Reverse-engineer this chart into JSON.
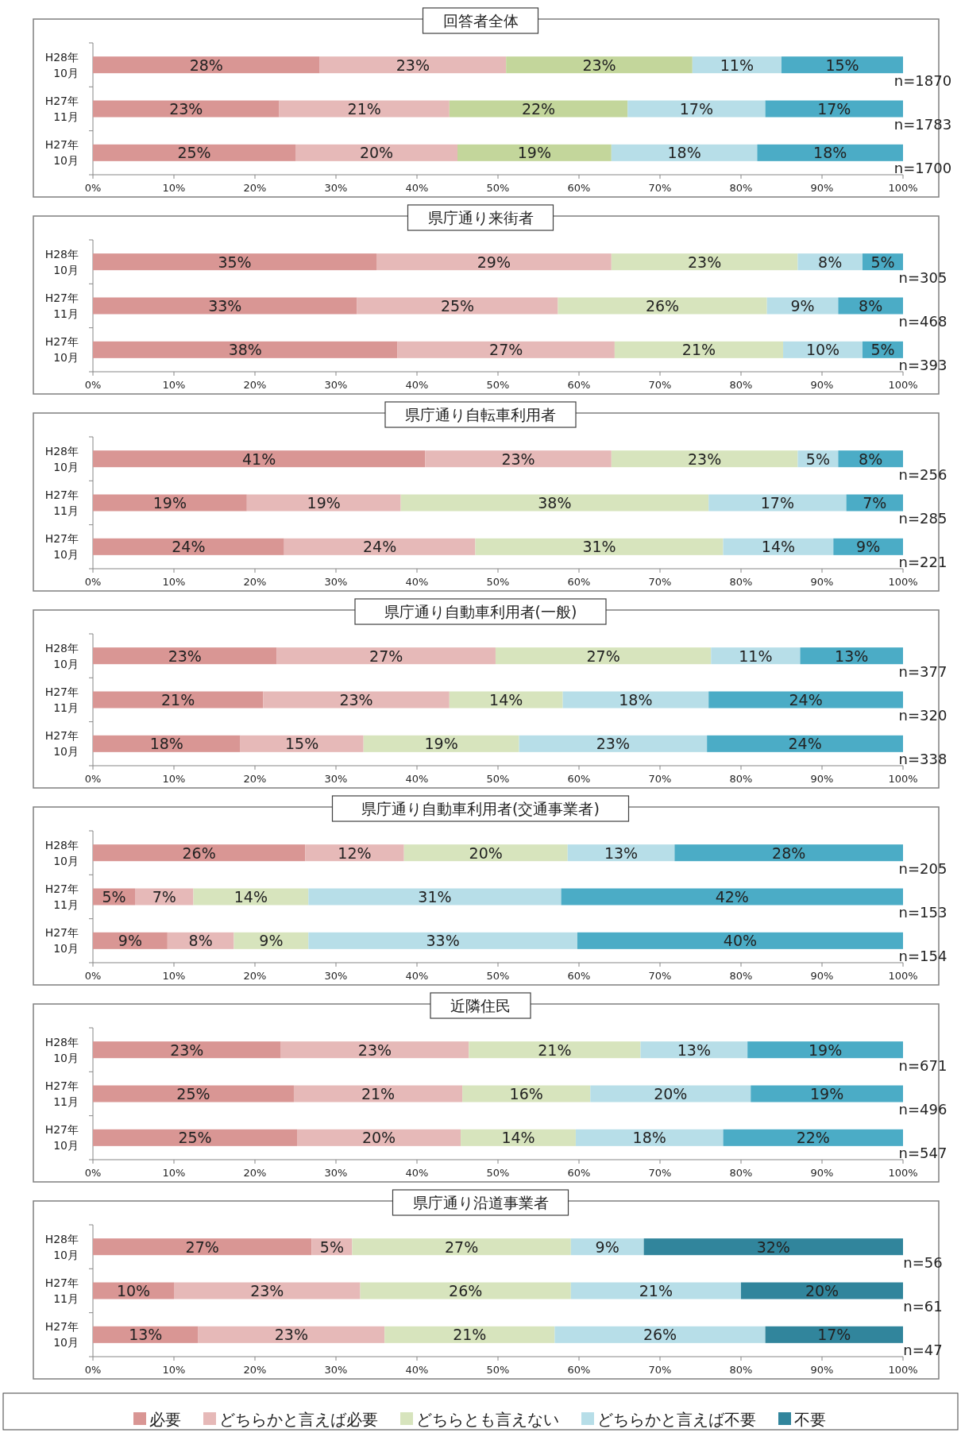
{
  "chart_data": [
    {
      "type": "bar",
      "orientation": "horizontal",
      "stacked": true,
      "title": "回答者全体",
      "categories": [
        "H28年\n10月",
        "H27年\n11月",
        "H27年\n10月"
      ],
      "xlim": [
        0,
        100
      ],
      "xticks": [
        {
          "value": 0,
          "label": "0%"
        },
        {
          "value": 10,
          "label": "10%"
        },
        {
          "value": 20,
          "label": "20%"
        },
        {
          "value": 30,
          "label": "30%"
        },
        {
          "value": 40,
          "label": "40%"
        },
        {
          "value": 50,
          "label": "50%"
        },
        {
          "value": 60,
          "label": "60%"
        },
        {
          "value": 70,
          "label": "70%"
        },
        {
          "value": 80,
          "label": "80%"
        },
        {
          "value": 90,
          "label": "90%"
        },
        {
          "value": 100,
          "label": "100%"
        }
      ],
      "legend": false,
      "series": [
        {
          "color": "#d99694",
          "values": [
            28,
            23,
            25
          ],
          "value_labels": [
            "28%",
            "23%",
            "25%"
          ]
        },
        {
          "color": "#e6b9b8",
          "values": [
            23,
            21,
            20
          ],
          "value_labels": [
            "23%",
            "21%",
            "20%"
          ]
        },
        {
          "color": "#c3d69b",
          "values": [
            23,
            22,
            19
          ],
          "value_labels": [
            "23%",
            "22%",
            "19%"
          ]
        },
        {
          "color": "#b7dee8",
          "values": [
            11,
            17,
            18
          ],
          "value_labels": [
            "11%",
            "17%",
            "18%"
          ]
        },
        {
          "color": "#4bacc6",
          "values": [
            15,
            17,
            18
          ],
          "value_labels": [
            "15%",
            "17%",
            "18%"
          ]
        }
      ],
      "annotations": [
        "n=1870",
        "n=1783",
        "n=1700"
      ]
    },
    {
      "type": "bar",
      "orientation": "horizontal",
      "stacked": true,
      "title": "県庁通り来街者",
      "categories": [
        "H28年\n10月",
        "H27年\n11月",
        "H27年\n10月"
      ],
      "xlim": [
        0,
        100
      ],
      "xticks": [
        {
          "value": 0,
          "label": "0%"
        },
        {
          "value": 10,
          "label": "10%"
        },
        {
          "value": 20,
          "label": "20%"
        },
        {
          "value": 30,
          "label": "30%"
        },
        {
          "value": 40,
          "label": "40%"
        },
        {
          "value": 50,
          "label": "50%"
        },
        {
          "value": 60,
          "label": "60%"
        },
        {
          "value": 70,
          "label": "70%"
        },
        {
          "value": 80,
          "label": "80%"
        },
        {
          "value": 90,
          "label": "90%"
        },
        {
          "value": 100,
          "label": "100%"
        }
      ],
      "legend": false,
      "series": [
        {
          "color": "#d99694",
          "values": [
            35,
            32.6,
            37.6
          ],
          "value_labels": [
            "35%",
            "33%",
            "38%"
          ]
        },
        {
          "color": "#e6b9b8",
          "values": [
            29,
            24.8,
            26.8
          ],
          "value_labels": [
            "29%",
            "25%",
            "27%"
          ]
        },
        {
          "color": "#d7e4bd",
          "values": [
            23,
            25.8,
            20.8
          ],
          "value_labels": [
            "23%",
            "26%",
            "21%"
          ]
        },
        {
          "color": "#b7dee8",
          "values": [
            8,
            8.8,
            9.8
          ],
          "value_labels": [
            "8%",
            "9%",
            "10%"
          ]
        },
        {
          "color": "#4bacc6",
          "values": [
            5,
            8,
            5
          ],
          "value_labels": [
            "5%",
            "8%",
            "5%"
          ]
        }
      ],
      "annotations": [
        "n=305",
        "n=468",
        "n=393"
      ]
    },
    {
      "type": "bar",
      "orientation": "horizontal",
      "stacked": true,
      "title": "県庁通り自転車利用者",
      "categories": [
        "H28年\n10月",
        "H27年\n11月",
        "H27年\n10月"
      ],
      "xlim": [
        0,
        100
      ],
      "xticks": [
        {
          "value": 0,
          "label": "0%"
        },
        {
          "value": 10,
          "label": "10%"
        },
        {
          "value": 20,
          "label": "20%"
        },
        {
          "value": 30,
          "label": "30%"
        },
        {
          "value": 40,
          "label": "40%"
        },
        {
          "value": 50,
          "label": "50%"
        },
        {
          "value": 60,
          "label": "60%"
        },
        {
          "value": 70,
          "label": "70%"
        },
        {
          "value": 80,
          "label": "80%"
        },
        {
          "value": 90,
          "label": "90%"
        },
        {
          "value": 100,
          "label": "100%"
        }
      ],
      "legend": false,
      "series": [
        {
          "color": "#d99694",
          "values": [
            41,
            19,
            23.6
          ],
          "value_labels": [
            "41%",
            "19%",
            "24%"
          ]
        },
        {
          "color": "#e6b9b8",
          "values": [
            23,
            19,
            23.6
          ],
          "value_labels": [
            "23%",
            "19%",
            "24%"
          ]
        },
        {
          "color": "#d7e4bd",
          "values": [
            23,
            38,
            30.6
          ],
          "value_labels": [
            "23%",
            "38%",
            "31%"
          ]
        },
        {
          "color": "#b7dee8",
          "values": [
            5,
            17,
            13.6
          ],
          "value_labels": [
            "5%",
            "17%",
            "14%"
          ]
        },
        {
          "color": "#4bacc6",
          "values": [
            8,
            7,
            8.6
          ],
          "value_labels": [
            "8%",
            "7%",
            "9%"
          ]
        }
      ],
      "annotations": [
        "n=256",
        "n=285",
        "n=221"
      ]
    },
    {
      "type": "bar",
      "orientation": "horizontal",
      "stacked": true,
      "title": "県庁通り自動車利用者(一般)",
      "categories": [
        "H28年\n10月",
        "H27年\n11月",
        "H27年\n10月"
      ],
      "xlim": [
        0,
        100
      ],
      "xticks": [
        {
          "value": 0,
          "label": "0%"
        },
        {
          "value": 10,
          "label": "10%"
        },
        {
          "value": 20,
          "label": "20%"
        },
        {
          "value": 30,
          "label": "30%"
        },
        {
          "value": 40,
          "label": "40%"
        },
        {
          "value": 50,
          "label": "50%"
        },
        {
          "value": 60,
          "label": "60%"
        },
        {
          "value": 70,
          "label": "70%"
        },
        {
          "value": 80,
          "label": "80%"
        },
        {
          "value": 90,
          "label": "90%"
        },
        {
          "value": 100,
          "label": "100%"
        }
      ],
      "legend": false,
      "series": [
        {
          "color": "#d99694",
          "values": [
            22.7,
            21,
            18.2
          ],
          "value_labels": [
            "23%",
            "21%",
            "18%"
          ]
        },
        {
          "color": "#e6b9b8",
          "values": [
            27,
            23,
            15.2
          ],
          "value_labels": [
            "27%",
            "23%",
            "15%"
          ]
        },
        {
          "color": "#d7e4bd",
          "values": [
            26.6,
            14,
            19.2
          ],
          "value_labels": [
            "27%",
            "14%",
            "19%"
          ]
        },
        {
          "color": "#b7dee8",
          "values": [
            11,
            18,
            23.2
          ],
          "value_labels": [
            "11%",
            "18%",
            "23%"
          ]
        },
        {
          "color": "#4bacc6",
          "values": [
            12.7,
            24,
            24.2
          ],
          "value_labels": [
            "13%",
            "24%",
            "24%"
          ]
        }
      ],
      "annotations": [
        "n=377",
        "n=320",
        "n=338"
      ]
    },
    {
      "type": "bar",
      "orientation": "horizontal",
      "stacked": true,
      "title": "県庁通り自動車利用者(交通事業者)",
      "categories": [
        "H28年\n10月",
        "H27年\n11月",
        "H27年\n10月"
      ],
      "xlim": [
        0,
        100
      ],
      "xticks": [
        {
          "value": 0,
          "label": "0%"
        },
        {
          "value": 10,
          "label": "10%"
        },
        {
          "value": 20,
          "label": "20%"
        },
        {
          "value": 30,
          "label": "30%"
        },
        {
          "value": 40,
          "label": "40%"
        },
        {
          "value": 50,
          "label": "50%"
        },
        {
          "value": 60,
          "label": "60%"
        },
        {
          "value": 70,
          "label": "70%"
        },
        {
          "value": 80,
          "label": "80%"
        },
        {
          "value": 90,
          "label": "90%"
        },
        {
          "value": 100,
          "label": "100%"
        }
      ],
      "legend": false,
      "series": [
        {
          "color": "#d99694",
          "values": [
            26.2,
            5.2,
            9.2
          ],
          "value_labels": [
            "26%",
            "5%",
            "9%"
          ]
        },
        {
          "color": "#e6b9b8",
          "values": [
            12.2,
            7.2,
            8.2
          ],
          "value_labels": [
            "12%",
            "7%",
            "8%"
          ]
        },
        {
          "color": "#d7e4bd",
          "values": [
            20.2,
            14.2,
            9.2
          ],
          "value_labels": [
            "20%",
            "14%",
            "9%"
          ]
        },
        {
          "color": "#b7dee8",
          "values": [
            13.2,
            31.2,
            33.2
          ],
          "value_labels": [
            "13%",
            "31%",
            "33%"
          ]
        },
        {
          "color": "#4bacc6",
          "values": [
            28.2,
            42.2,
            40.2
          ],
          "value_labels": [
            "28%",
            "42%",
            "40%"
          ]
        }
      ],
      "annotations": [
        "n=205",
        "n=153",
        "n=154"
      ]
    },
    {
      "type": "bar",
      "orientation": "horizontal",
      "stacked": true,
      "title": "近隣住民",
      "categories": [
        "H28年\n10月",
        "H27年\n11月",
        "H27年\n10月"
      ],
      "xlim": [
        0,
        100
      ],
      "xticks": [
        {
          "value": 0,
          "label": "0%"
        },
        {
          "value": 10,
          "label": "10%"
        },
        {
          "value": 20,
          "label": "20%"
        },
        {
          "value": 30,
          "label": "30%"
        },
        {
          "value": 40,
          "label": "40%"
        },
        {
          "value": 50,
          "label": "50%"
        },
        {
          "value": 60,
          "label": "60%"
        },
        {
          "value": 70,
          "label": "70%"
        },
        {
          "value": 80,
          "label": "80%"
        },
        {
          "value": 90,
          "label": "90%"
        },
        {
          "value": 100,
          "label": "100%"
        }
      ],
      "legend": false,
      "series": [
        {
          "color": "#d99694",
          "values": [
            23.2,
            24.8,
            25.2
          ],
          "value_labels": [
            "23%",
            "25%",
            "25%"
          ]
        },
        {
          "color": "#e6b9b8",
          "values": [
            23.2,
            20.8,
            20.2
          ],
          "value_labels": [
            "23%",
            "21%",
            "20%"
          ]
        },
        {
          "color": "#d7e4bd",
          "values": [
            21.2,
            15.8,
            14.2
          ],
          "value_labels": [
            "21%",
            "16%",
            "14%"
          ]
        },
        {
          "color": "#b7dee8",
          "values": [
            13.2,
            19.8,
            18.2
          ],
          "value_labels": [
            "13%",
            "20%",
            "18%"
          ]
        },
        {
          "color": "#4bacc6",
          "values": [
            19.2,
            18.8,
            22.2
          ],
          "value_labels": [
            "19%",
            "19%",
            "22%"
          ]
        }
      ],
      "annotations": [
        "n=671",
        "n=496",
        "n=547"
      ]
    },
    {
      "type": "bar",
      "orientation": "horizontal",
      "stacked": true,
      "title": "県庁通り沿道事業者",
      "categories": [
        "H28年\n10月",
        "H27年\n11月",
        "H27年\n10月"
      ],
      "xlim": [
        0,
        100
      ],
      "xticks": [
        {
          "value": 0,
          "label": "0%"
        },
        {
          "value": 10,
          "label": "10%"
        },
        {
          "value": 20,
          "label": "20%"
        },
        {
          "value": 30,
          "label": "30%"
        },
        {
          "value": 40,
          "label": "40%"
        },
        {
          "value": 50,
          "label": "50%"
        },
        {
          "value": 60,
          "label": "60%"
        },
        {
          "value": 70,
          "label": "70%"
        },
        {
          "value": 80,
          "label": "80%"
        },
        {
          "value": 90,
          "label": "90%"
        },
        {
          "value": 100,
          "label": "100%"
        }
      ],
      "legend": "bottom",
      "series": [
        {
          "name": "必要",
          "color": "#d99694",
          "values": [
            27,
            10,
            13
          ],
          "value_labels": [
            "27%",
            "10%",
            "13%"
          ]
        },
        {
          "name": "どちらかと言えば必要",
          "color": "#e6b9b8",
          "values": [
            5,
            23,
            23
          ],
          "value_labels": [
            "5%",
            "23%",
            "23%"
          ]
        },
        {
          "name": "どちらとも言えない",
          "color": "#d7e4bd",
          "values": [
            27,
            26,
            21
          ],
          "value_labels": [
            "27%",
            "26%",
            "21%"
          ]
        },
        {
          "name": "どちらかと言えば不要",
          "color": "#b7dee8",
          "values": [
            9,
            21,
            26
          ],
          "value_labels": [
            "9%",
            "21%",
            "26%"
          ]
        },
        {
          "name": "不要",
          "color": "#31859c",
          "values": [
            32,
            20,
            17
          ],
          "value_labels": [
            "32%",
            "20%",
            "17%"
          ]
        }
      ],
      "annotations": [
        "n=56",
        "n=61",
        "n=47"
      ]
    }
  ]
}
